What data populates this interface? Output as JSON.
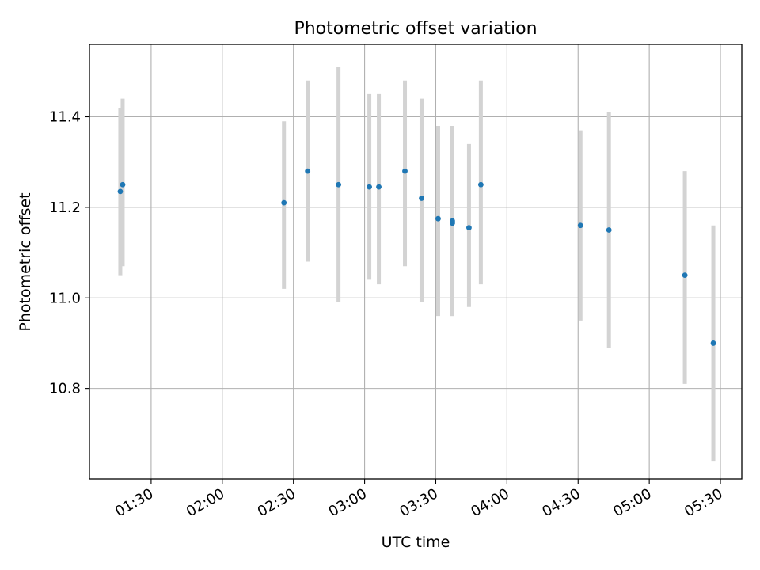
{
  "chart_data": {
    "type": "scatter",
    "title": "Photometric offset variation",
    "xlabel": "UTC time",
    "ylabel": "Photometric offset",
    "x_tick_labels": [
      "01:30",
      "02:00",
      "02:30",
      "03:00",
      "03:30",
      "04:00",
      "04:30",
      "05:00",
      "05:30"
    ],
    "y_tick_labels": [
      "10.8",
      "11.0",
      "11.2",
      "11.4"
    ],
    "y_ticks": [
      10.8,
      11.0,
      11.2,
      11.4
    ],
    "xlim": [
      "01:04",
      "05:39"
    ],
    "ylim": [
      10.6,
      11.56
    ],
    "grid": true,
    "marker_color": "#1f77b4",
    "errorbar_color": "#d3d3d3",
    "points": [
      {
        "x": "01:17",
        "y": 11.235,
        "ylo": 11.05,
        "yhi": 11.42
      },
      {
        "x": "01:18",
        "y": 11.25,
        "ylo": 11.07,
        "yhi": 11.44
      },
      {
        "x": "02:26",
        "y": 11.21,
        "ylo": 11.02,
        "yhi": 11.39
      },
      {
        "x": "02:36",
        "y": 11.28,
        "ylo": 11.08,
        "yhi": 11.48
      },
      {
        "x": "02:49",
        "y": 11.25,
        "ylo": 10.99,
        "yhi": 11.51
      },
      {
        "x": "03:02",
        "y": 11.245,
        "ylo": 11.04,
        "yhi": 11.45
      },
      {
        "x": "03:06",
        "y": 11.245,
        "ylo": 11.03,
        "yhi": 11.45
      },
      {
        "x": "03:17",
        "y": 11.28,
        "ylo": 11.07,
        "yhi": 11.48
      },
      {
        "x": "03:24",
        "y": 11.22,
        "ylo": 10.99,
        "yhi": 11.44
      },
      {
        "x": "03:31",
        "y": 11.175,
        "ylo": 10.96,
        "yhi": 11.38
      },
      {
        "x": "03:37",
        "y": 11.165,
        "ylo": 10.96,
        "yhi": 11.37
      },
      {
        "x": "03:37",
        "y": 11.17,
        "ylo": 10.96,
        "yhi": 11.38
      },
      {
        "x": "03:44",
        "y": 11.155,
        "ylo": 10.98,
        "yhi": 11.34
      },
      {
        "x": "03:49",
        "y": 11.25,
        "ylo": 11.03,
        "yhi": 11.48
      },
      {
        "x": "04:31",
        "y": 11.16,
        "ylo": 10.95,
        "yhi": 11.37
      },
      {
        "x": "04:43",
        "y": 11.15,
        "ylo": 10.89,
        "yhi": 11.41
      },
      {
        "x": "05:15",
        "y": 11.05,
        "ylo": 10.81,
        "yhi": 11.28
      },
      {
        "x": "05:27",
        "y": 10.9,
        "ylo": 10.64,
        "yhi": 11.16
      }
    ]
  }
}
